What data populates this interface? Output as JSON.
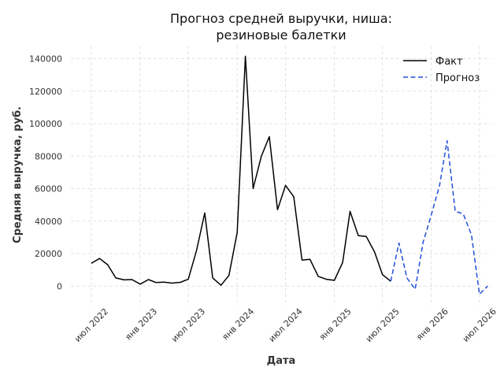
{
  "chart_data": {
    "type": "line",
    "title_lines": [
      "Прогноз средней выручки, ниша:",
      "резиновые балетки"
    ],
    "xlabel": "Дата",
    "ylabel": "Средняя выручка, руб.",
    "xlim": [
      "2022-04-15",
      "2026-08-15"
    ],
    "ylim": [
      -12000,
      148000
    ],
    "y_ticks": [
      0,
      20000,
      40000,
      60000,
      80000,
      100000,
      120000,
      140000
    ],
    "x_ticks": [
      {
        "date": "2022-07-01",
        "label": "июл 2022"
      },
      {
        "date": "2023-01-01",
        "label": "янв 2023"
      },
      {
        "date": "2023-07-01",
        "label": "июл 2023"
      },
      {
        "date": "2024-01-01",
        "label": "янв 2024"
      },
      {
        "date": "2024-07-01",
        "label": "июл 2024"
      },
      {
        "date": "2025-01-01",
        "label": "янв 2025"
      },
      {
        "date": "2025-07-01",
        "label": "июл 2025"
      },
      {
        "date": "2026-01-01",
        "label": "янв 2026"
      },
      {
        "date": "2026-07-01",
        "label": "июл 2026"
      }
    ],
    "grid": true,
    "legend_position": "top-right",
    "series": [
      {
        "name": "Факт",
        "color": "#000000",
        "style": "solid",
        "x": [
          "2022-07-01",
          "2022-08-01",
          "2022-09-01",
          "2022-10-01",
          "2022-11-01",
          "2022-12-01",
          "2023-01-01",
          "2023-02-01",
          "2023-03-01",
          "2023-04-01",
          "2023-05-01",
          "2023-06-01",
          "2023-07-01",
          "2023-08-01",
          "2023-09-01",
          "2023-10-01",
          "2023-11-01",
          "2023-12-01",
          "2024-01-01",
          "2024-02-01",
          "2024-03-01",
          "2024-04-01",
          "2024-05-01",
          "2024-06-01",
          "2024-07-01",
          "2024-08-01",
          "2024-09-01",
          "2024-10-01",
          "2024-11-01",
          "2024-12-01",
          "2025-01-01",
          "2025-02-01",
          "2025-03-01",
          "2025-04-01",
          "2025-05-01",
          "2025-06-01",
          "2025-07-01",
          "2025-08-01"
        ],
        "y": [
          14000,
          17000,
          13000,
          5000,
          3800,
          4000,
          1200,
          4000,
          2200,
          2400,
          1800,
          2300,
          4200,
          22000,
          45000,
          5000,
          500,
          6500,
          33000,
          141500,
          60000,
          80000,
          92000,
          47000,
          62000,
          55000,
          16000,
          16500,
          6000,
          4200,
          3500,
          14500,
          46000,
          31000,
          30500,
          21000,
          7000,
          3000
        ]
      },
      {
        "name": "Прогноз",
        "color": "#1f4fd8",
        "style": "dashed",
        "x": [
          "2025-08-01",
          "2025-09-01",
          "2025-10-01",
          "2025-11-01",
          "2025-12-01",
          "2026-01-01",
          "2026-02-01",
          "2026-03-01",
          "2026-04-01",
          "2026-05-01",
          "2026-06-01",
          "2026-07-01",
          "2026-08-01"
        ],
        "y": [
          3000,
          26500,
          5000,
          -2000,
          27000,
          44000,
          62000,
          89500,
          46000,
          44500,
          31500,
          -5000,
          0
        ]
      }
    ]
  }
}
